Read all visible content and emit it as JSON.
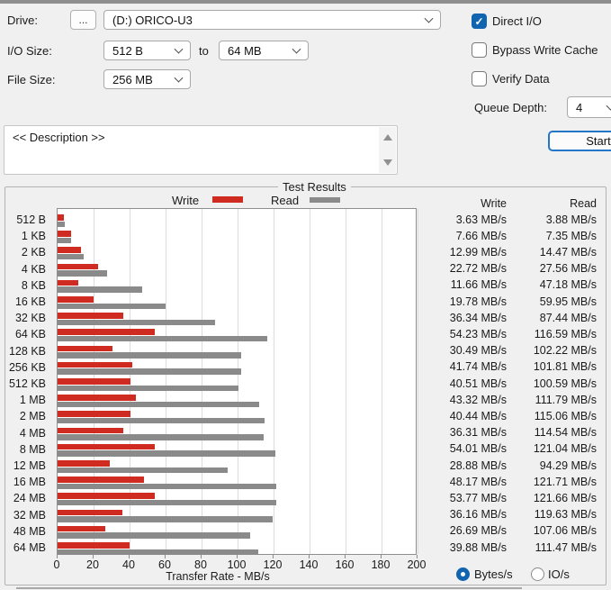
{
  "controls": {
    "drive_label": "Drive:",
    "browse_button": "...",
    "drive_value": "(D:) ORICO-U3",
    "io_size_label": "I/O Size:",
    "io_size_from": "512 B",
    "io_size_to_label": "to",
    "io_size_to": "64 MB",
    "file_size_label": "File Size:",
    "file_size_value": "256 MB",
    "direct_io_label": "Direct I/O",
    "direct_io_checked": true,
    "bypass_write_cache_label": "Bypass Write Cache",
    "bypass_write_cache_checked": false,
    "verify_data_label": "Verify Data",
    "verify_data_checked": false,
    "queue_depth_label": "Queue Depth:",
    "queue_depth_value": "4",
    "start_button": "Start",
    "description_text": "<< Description >>"
  },
  "results": {
    "group_title": "Test Results",
    "legend_write": "Write",
    "legend_read": "Read",
    "col_write": "Write",
    "col_read": "Read",
    "radio_bytes": "Bytes/s",
    "radio_ios": "IO/s"
  },
  "colors": {
    "write": "#d02b20",
    "read": "#8a8a8a",
    "accent": "#1064b0",
    "gridline": "#dcdcdc"
  },
  "chart_data": {
    "type": "bar",
    "orientation": "horizontal",
    "title": "Test Results",
    "xlabel": "Transfer Rate - MB/s",
    "unit": "MB/s",
    "xlim": [
      0,
      200
    ],
    "xticks": [
      0,
      20,
      40,
      60,
      80,
      100,
      120,
      140,
      160,
      180,
      200
    ],
    "grid": true,
    "legend_position": "top",
    "categories": [
      "512 B",
      "1 KB",
      "2 KB",
      "4 KB",
      "8 KB",
      "16 KB",
      "32 KB",
      "64 KB",
      "128 KB",
      "256 KB",
      "512 KB",
      "1 MB",
      "2 MB",
      "4 MB",
      "8 MB",
      "12 MB",
      "16 MB",
      "24 MB",
      "32 MB",
      "48 MB",
      "64 MB"
    ],
    "series": [
      {
        "name": "Write",
        "values": [
          3.63,
          7.66,
          12.99,
          22.72,
          11.66,
          19.78,
          36.34,
          54.23,
          30.49,
          41.74,
          40.51,
          43.32,
          40.44,
          36.31,
          54.01,
          28.88,
          48.17,
          53.77,
          36.16,
          26.69,
          39.88
        ]
      },
      {
        "name": "Read",
        "values": [
          3.88,
          7.35,
          14.47,
          27.56,
          47.18,
          59.95,
          87.44,
          116.59,
          102.22,
          101.81,
          100.59,
          111.79,
          115.06,
          114.54,
          121.04,
          94.29,
          121.71,
          121.66,
          119.63,
          107.06,
          111.47
        ]
      }
    ]
  }
}
